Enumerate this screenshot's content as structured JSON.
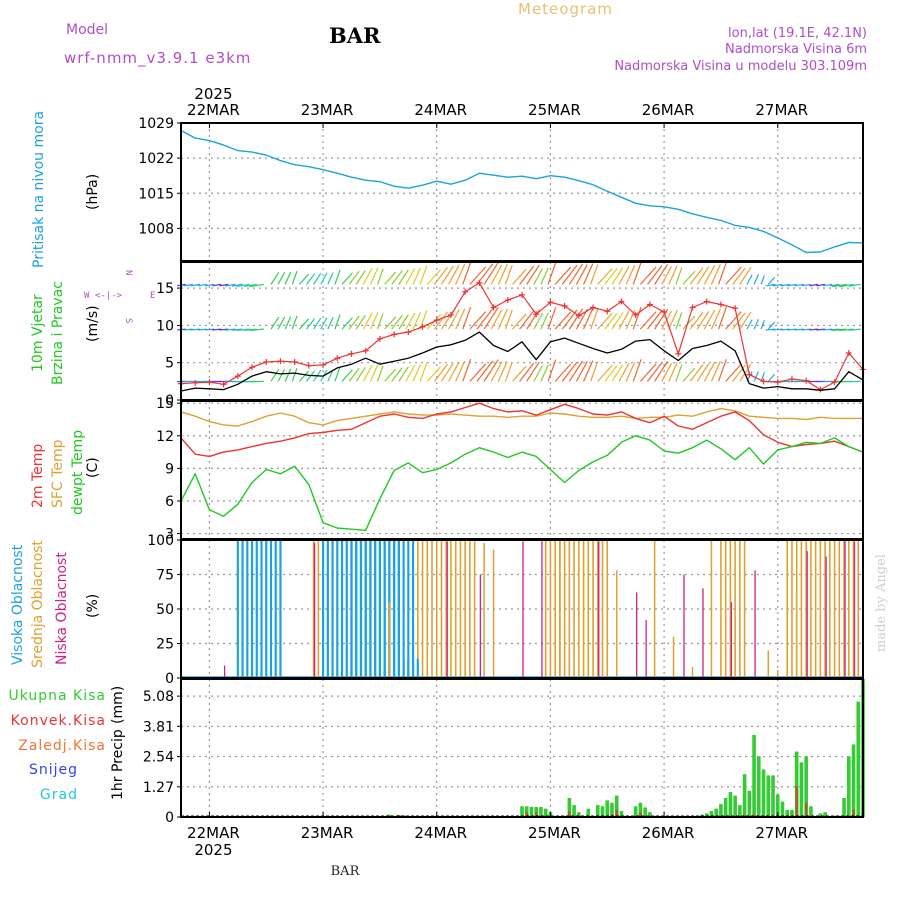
{
  "header": {
    "title": "BAR",
    "meteogram": "Meteogram",
    "model_label": "Model",
    "model_name": "wrf-nmm_v3.9.1  e3km",
    "lonlat": "lon,lat (19.1E, 42.1N)",
    "altitude": "Nadmorska Visina 6m",
    "model_altitude": "Nadmorska Visina u modelu 303.109m",
    "footer_station": "BAR",
    "watermark": "made by Angel"
  },
  "colors": {
    "pressure": "#1ba3e0",
    "wind_speed": "#000000",
    "gust": "#ee3333",
    "temp2m": "#ee3333",
    "sfc_temp": "#e0a030",
    "dewpoint": "#22c822",
    "cloud_high": "#1ba3e0",
    "cloud_mid": "#e0a030",
    "cloud_low": "#cc2288",
    "rain_total": "#33cc33",
    "rain_conv": "#ee3333",
    "snow": "#3344ee",
    "hail": "#22cccc",
    "model_text": "#b04ec8",
    "meteogram_text": "#e8c070"
  },
  "time_axis": {
    "year_label": "2025",
    "days": [
      "22MAR",
      "23MAR",
      "24MAR",
      "25MAR",
      "26MAR",
      "27MAR"
    ],
    "start_hour_offset": -6,
    "end_hour_offset": 138
  },
  "chart_data": [
    {
      "type": "line",
      "panel": "pressure",
      "ylabel": "Pritisak na nivou mora",
      "unit": "(hPa)",
      "yticks": [
        "1029",
        "1022",
        "1015",
        "1008"
      ],
      "ylim": [
        1001.5,
        1029
      ],
      "x_hours": [
        -6,
        -3,
        0,
        3,
        6,
        9,
        12,
        15,
        18,
        21,
        24,
        27,
        30,
        33,
        36,
        39,
        42,
        45,
        48,
        51,
        54,
        57,
        60,
        63,
        66,
        69,
        72,
        75,
        78,
        81,
        84,
        87,
        90,
        93,
        96,
        99,
        102,
        105,
        108,
        111,
        114,
        117,
        120,
        123,
        126,
        129,
        132,
        135,
        138
      ],
      "values": [
        1027.5,
        1026,
        1025.5,
        1024.6,
        1023.5,
        1023.2,
        1022.6,
        1021.5,
        1020.7,
        1020.3,
        1019.7,
        1019,
        1018.2,
        1017.6,
        1017.3,
        1016.4,
        1016,
        1016.6,
        1017.4,
        1016.8,
        1017.6,
        1019,
        1018.6,
        1018.2,
        1018.4,
        1017.9,
        1018.5,
        1018.2,
        1017.5,
        1016.7,
        1015.4,
        1014.2,
        1013,
        1012.5,
        1012.3,
        1011.8,
        1010.9,
        1010.2,
        1009.6,
        1008.6,
        1008.2,
        1007.4,
        1006.1,
        1004.7,
        1003.2,
        1003.3,
        1004.3,
        1005.2,
        1005.1
      ]
    },
    {
      "type": "line",
      "panel": "wind",
      "ylabel_1": "10m Vjetar",
      "ylabel_2": "Brzina i Pravac",
      "unit": "(m/s)",
      "compass": "N",
      "compass_w": "W",
      "compass_e": "E",
      "compass_s": "S",
      "compass_arrow": "<-|->",
      "yticks": [
        "15",
        "10",
        "5",
        "0"
      ],
      "ylim": [
        0,
        18.5
      ],
      "x_hours": [
        -6,
        -3,
        0,
        3,
        6,
        9,
        12,
        15,
        18,
        21,
        24,
        27,
        30,
        33,
        36,
        39,
        42,
        45,
        48,
        51,
        54,
        57,
        60,
        63,
        66,
        69,
        72,
        75,
        78,
        81,
        84,
        87,
        90,
        93,
        96,
        99,
        102,
        105,
        108,
        111,
        114,
        117,
        120,
        123,
        126,
        129,
        132,
        135,
        138
      ],
      "speed": [
        1.2,
        1.6,
        1.5,
        1.4,
        2.1,
        3.2,
        3.8,
        3.5,
        3.6,
        3.3,
        3.2,
        4.3,
        4.8,
        5.6,
        4.8,
        5.2,
        5.6,
        6.3,
        7.1,
        7.4,
        8,
        9.1,
        7.3,
        6.5,
        7.8,
        5.4,
        7.8,
        8.3,
        7.6,
        6.9,
        6.3,
        6.8,
        7.9,
        8.1,
        6.6,
        5.3,
        6.9,
        7.3,
        7.9,
        6.6,
        2.2,
        1.6,
        1.8,
        1.5,
        1.5,
        1.3,
        1.5,
        3.8,
        2.7
      ],
      "gust": [
        2.2,
        2.3,
        2.4,
        2.1,
        3.2,
        4.4,
        5.1,
        5.2,
        5.1,
        4.6,
        4.7,
        5.6,
        6.2,
        6.6,
        8.2,
        8.8,
        9.1,
        9.8,
        10.7,
        11.4,
        14.5,
        15.7,
        12.4,
        13.4,
        14.1,
        11.5,
        13.1,
        12.6,
        11.3,
        12.4,
        11.9,
        13.2,
        11.4,
        12.8,
        11.8,
        6.2,
        12.4,
        13.2,
        12.8,
        12.3,
        3.4,
        2.5,
        2.4,
        2.8,
        2.6,
        1.4,
        2.4,
        6.3,
        4.1
      ]
    },
    {
      "type": "line",
      "panel": "temperature",
      "ylabel_1": "2m Temp",
      "ylabel_2": "SFC Temp",
      "ylabel_3": "dewpt Temp",
      "unit": "(C)",
      "yticks": [
        "15",
        "12",
        "9",
        "6",
        "3"
      ],
      "ylim": [
        2.5,
        15.2
      ],
      "x_hours": [
        -6,
        -3,
        0,
        3,
        6,
        9,
        12,
        15,
        18,
        21,
        24,
        27,
        30,
        33,
        36,
        39,
        42,
        45,
        48,
        51,
        54,
        57,
        60,
        63,
        66,
        69,
        72,
        75,
        78,
        81,
        84,
        87,
        90,
        93,
        96,
        99,
        102,
        105,
        108,
        111,
        114,
        117,
        120,
        123,
        126,
        129,
        132,
        135,
        138
      ],
      "temp2m": [
        11.8,
        10.3,
        10.1,
        10.5,
        10.7,
        11,
        11.3,
        11.5,
        11.8,
        12.2,
        12.3,
        12.5,
        12.6,
        13.2,
        13.8,
        14,
        13.7,
        13.6,
        14,
        14.2,
        14.6,
        15,
        14.5,
        14.2,
        14.3,
        13.9,
        14.4,
        14.9,
        14.5,
        14,
        13.9,
        14.2,
        13.6,
        13.2,
        13.8,
        12.9,
        12.6,
        13.2,
        13.8,
        14.2,
        13.4,
        12.1,
        11.4,
        11,
        11.2,
        11.3,
        11.5,
        11,
        10.5
      ],
      "sfc_temp": [
        14.2,
        13.8,
        13.3,
        13,
        12.9,
        13.3,
        13.8,
        14.1,
        13.8,
        13.2,
        13,
        13.4,
        13.6,
        13.8,
        14,
        14.2,
        14,
        13.9,
        13.9,
        14,
        13.9,
        13.8,
        13.8,
        13.7,
        13.8,
        13.8,
        14.1,
        14,
        13.8,
        13.7,
        13.7,
        13.8,
        13.6,
        13.7,
        13.7,
        13.9,
        13.8,
        14.2,
        14.5,
        14.3,
        13.8,
        13.7,
        13.6,
        13.6,
        13.5,
        13.7,
        13.6,
        13.6,
        13.6
      ],
      "dewpt": [
        6,
        8.5,
        5.2,
        4.6,
        5.7,
        7.7,
        8.9,
        8.5,
        9.2,
        7.5,
        4,
        3.5,
        3.4,
        3.3,
        6.2,
        8.8,
        9.5,
        8.6,
        8.9,
        9.5,
        10.3,
        10.9,
        10.5,
        10,
        10.5,
        10.1,
        8.9,
        7.7,
        8.8,
        9.6,
        10.2,
        11.4,
        12,
        11.6,
        10.6,
        10.4,
        10.9,
        11.6,
        10.8,
        9.8,
        10.9,
        9.4,
        10.7,
        11,
        11.4,
        11.3,
        11.8,
        11,
        10.5
      ]
    },
    {
      "type": "bar",
      "panel": "clouds",
      "ylabel_1": "Visoka Oblacnost",
      "ylabel_2": "Srednja Oblacnost",
      "ylabel_3": "Niska Oblacnost",
      "unit": "(%)",
      "yticks": [
        "100",
        "75",
        "50",
        "25",
        "0"
      ],
      "ylim": [
        0,
        100
      ],
      "high_runs": [
        [
          6,
          15,
          100
        ],
        [
          24,
          43,
          100
        ],
        [
          30,
          40,
          100
        ],
        [
          41,
          44,
          14
        ]
      ],
      "mid_runs": [
        [
          22,
          34,
          100
        ],
        [
          43,
          56,
          100
        ],
        [
          71,
          84,
          100
        ],
        [
          108,
          113,
          100
        ],
        [
          122,
          138,
          100
        ]
      ],
      "low_bars": [
        [
          3,
          9
        ],
        [
          22,
          98
        ],
        [
          50,
          99
        ],
        [
          57,
          75
        ],
        [
          66,
          99
        ],
        [
          70,
          100
        ],
        [
          82,
          99
        ],
        [
          90,
          62
        ],
        [
          92,
          42
        ],
        [
          100,
          75
        ],
        [
          104,
          65
        ],
        [
          110,
          55
        ],
        [
          115,
          78
        ],
        [
          126,
          92
        ],
        [
          130,
          88
        ],
        [
          134,
          100
        ],
        [
          136,
          99
        ]
      ],
      "mid_bars": [
        [
          38,
          55
        ],
        [
          58,
          98
        ],
        [
          60,
          93
        ],
        [
          74,
          100
        ],
        [
          80,
          88
        ],
        [
          86,
          78
        ],
        [
          94,
          100
        ],
        [
          98,
          30
        ],
        [
          102,
          8
        ],
        [
          106,
          100
        ],
        [
          118,
          20
        ],
        [
          120,
          6
        ],
        [
          124,
          63
        ]
      ]
    },
    {
      "type": "bar",
      "panel": "precipitation",
      "ylabel": "1hr Precip",
      "unit": "(mm)",
      "legend": [
        "Ukupna Kisa",
        "Konvek.Kisa",
        "Zaledj.Kisa",
        "Snijeg",
        "Grad"
      ],
      "yticks": [
        "5.08",
        "3.81",
        "2.54",
        "1.27",
        "0"
      ],
      "ylim": [
        0,
        5.8
      ],
      "total": [
        [
          38,
          0.1
        ],
        [
          40,
          0.08
        ],
        [
          41,
          0.07
        ],
        [
          44,
          0.05
        ],
        [
          46,
          0.05
        ],
        [
          48,
          0.05
        ],
        [
          66,
          0.45
        ],
        [
          67,
          0.45
        ],
        [
          68,
          0.43
        ],
        [
          69,
          0.42
        ],
        [
          70,
          0.42
        ],
        [
          71,
          0.35
        ],
        [
          72,
          0.2
        ],
        [
          75,
          0.05
        ],
        [
          76,
          0.8
        ],
        [
          77,
          0.5
        ],
        [
          78,
          0.2
        ],
        [
          80,
          0.35
        ],
        [
          82,
          0.5
        ],
        [
          83,
          0.45
        ],
        [
          84,
          0.7
        ],
        [
          85,
          0.6
        ],
        [
          86,
          0.9
        ],
        [
          87,
          0.25
        ],
        [
          88,
          0.05
        ],
        [
          90,
          0.45
        ],
        [
          91,
          0.6
        ],
        [
          92,
          0.4
        ],
        [
          93,
          0.2
        ],
        [
          94,
          0.05
        ],
        [
          104,
          0.1
        ],
        [
          105,
          0.15
        ],
        [
          106,
          0.25
        ],
        [
          107,
          0.35
        ],
        [
          108,
          0.55
        ],
        [
          109,
          0.8
        ],
        [
          110,
          1.05
        ],
        [
          111,
          0.9
        ],
        [
          112,
          0.5
        ],
        [
          113,
          1.8
        ],
        [
          114,
          1.1
        ],
        [
          115,
          3.45
        ],
        [
          116,
          2.55
        ],
        [
          117,
          2.0
        ],
        [
          118,
          1.75
        ],
        [
          119,
          1.75
        ],
        [
          120,
          0.95
        ],
        [
          121,
          0.65
        ],
        [
          122,
          0.3
        ],
        [
          123,
          0.3
        ],
        [
          124,
          2.75
        ],
        [
          125,
          2.3
        ],
        [
          126,
          2.55
        ],
        [
          127,
          0.45
        ],
        [
          129,
          0.15
        ],
        [
          130,
          0.2
        ],
        [
          132,
          0.05
        ],
        [
          133,
          0.05
        ],
        [
          134,
          0.8
        ],
        [
          135,
          2.55
        ],
        [
          136,
          3.05
        ],
        [
          137,
          4.85
        ],
        [
          138,
          5.8
        ]
      ],
      "convective": [
        [
          40,
          0.08
        ],
        [
          67,
          0.2
        ],
        [
          69,
          0.2
        ],
        [
          76,
          0.25
        ],
        [
          85,
          0.1
        ],
        [
          86,
          0.3
        ],
        [
          91,
          0.2
        ],
        [
          113,
          0.1
        ],
        [
          115,
          0.1
        ],
        [
          124,
          1.3
        ],
        [
          126,
          0.6
        ],
        [
          136,
          0.3
        ]
      ]
    }
  ]
}
